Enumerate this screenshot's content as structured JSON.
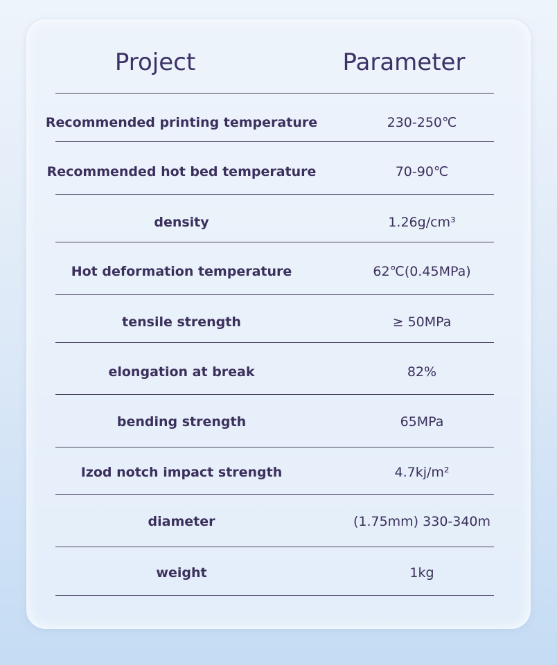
{
  "table": {
    "header": [
      "Project",
      "Parameter"
    ],
    "rows": [
      [
        "Recommended printing temperature",
        "230-250℃"
      ],
      [
        "Recommended hot bed temperature",
        "70-90℃"
      ],
      [
        "density",
        "1.26g/cm³"
      ],
      [
        "Hot deformation temperature",
        "62℃(0.45MPa)"
      ],
      [
        "tensile strength",
        "≥ 50MPa"
      ],
      [
        "elongation at break",
        "82%"
      ],
      [
        "bending strength",
        "65MPa"
      ],
      [
        "Izod notch impact strength",
        "4.7kj/m²"
      ],
      [
        "diameter",
        "(1.75mm) 330-340m"
      ],
      [
        "weight",
        "1kg"
      ]
    ]
  }
}
